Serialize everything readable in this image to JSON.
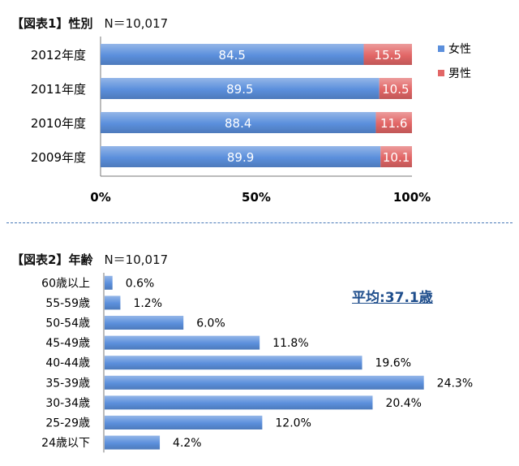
{
  "chart_data": [
    {
      "type": "bar",
      "orientation": "horizontal",
      "stacked": true,
      "title_bracket": "【図表1】",
      "title": "性別",
      "n_label": "N＝10,017",
      "categories": [
        "2012年度",
        "2011年度",
        "2010年度",
        "2009年度"
      ],
      "series": [
        {
          "name": "女性",
          "values": [
            84.5,
            89.5,
            88.4,
            89.9
          ],
          "color": "#5b8fdc"
        },
        {
          "name": "男性",
          "values": [
            15.5,
            10.5,
            11.6,
            10.1
          ],
          "color": "#e26666"
        }
      ],
      "xlim": [
        0,
        100
      ],
      "xticks": [
        "0%",
        "50%",
        "100%"
      ],
      "legend_position": "right",
      "grid": false
    },
    {
      "type": "bar",
      "orientation": "horizontal",
      "title_bracket": "【図表2】",
      "title": "年齢",
      "n_label": "N＝10,017",
      "categories": [
        "60歳以上",
        "55-59歳",
        "50-54歳",
        "45-49歳",
        "40-44歳",
        "35-39歳",
        "30-34歳",
        "25-29歳",
        "24歳以下"
      ],
      "values": [
        0.6,
        1.2,
        6.0,
        11.8,
        19.6,
        24.3,
        20.4,
        12.0,
        4.2
      ],
      "value_labels": [
        "0.6%",
        "1.2%",
        "6.0%",
        "11.8%",
        "19.6%",
        "24.3%",
        "20.4%",
        "12.0%",
        "4.2%"
      ],
      "color": "#5b8fdc",
      "annotation": "平均:37.1歳",
      "grid": false
    }
  ]
}
